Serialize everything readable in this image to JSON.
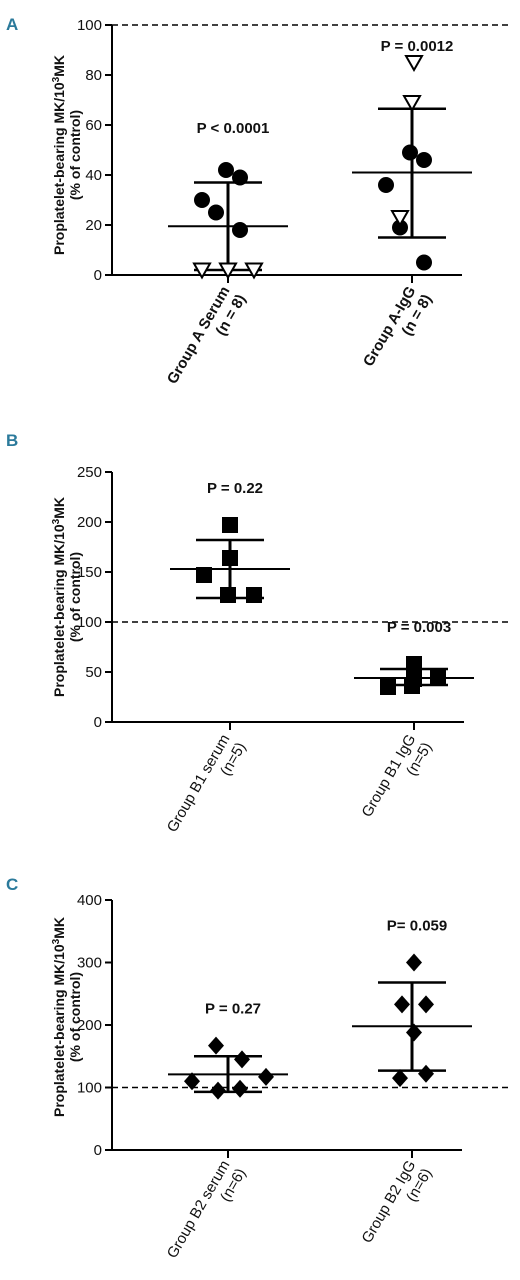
{
  "chart_data": [
    {
      "panel": "A",
      "type": "scatter",
      "ylabel_main": "Proplatelet-bearing MK/10",
      "ylabel_sup": "3",
      "ylabel_tail": "MK",
      "ylabel_line2": "(% of control)",
      "ylim": [
        0,
        100
      ],
      "yticks": [
        0,
        20,
        40,
        60,
        80,
        100
      ],
      "reference_line": 100,
      "categories": [
        {
          "label": "Group A Serum",
          "n_label": "(n = 8)",
          "p_text": "P < 0.0001",
          "mean": 19.5,
          "sd_low": 2,
          "sd_high": 37,
          "circles": [
            42,
            39,
            30,
            25,
            18
          ],
          "triangles": [
            1,
            1,
            1
          ]
        },
        {
          "label": "Group A-IgG",
          "n_label": "(n = 8)",
          "p_text": "P = 0.0012",
          "mean": 41,
          "sd_low": 15,
          "sd_high": 66.5,
          "circles": [
            49,
            46,
            36,
            19,
            5
          ],
          "triangles": [
            84,
            68,
            22
          ]
        }
      ]
    },
    {
      "panel": "B",
      "type": "scatter",
      "ylabel_main": "Proplatelet-bearing MK/10",
      "ylabel_sup": "3",
      "ylabel_tail": "MK",
      "ylabel_line2": "(% of control)",
      "ylim": [
        0,
        250
      ],
      "yticks": [
        0,
        50,
        100,
        150,
        200,
        250
      ],
      "reference_line": 100,
      "categories": [
        {
          "label": "Group B1 serum",
          "n_label": "(n=5)",
          "p_text": "P = 0.22",
          "mean": 153,
          "sd_low": 124,
          "sd_high": 182,
          "squares": [
            197,
            164,
            147,
            127,
            127
          ]
        },
        {
          "label": "Group B1 IgG",
          "n_label": "(n=5)",
          "p_text": "P = 0.003",
          "mean": 44,
          "sd_low": 37,
          "sd_high": 53,
          "squares": [
            58,
            43,
            35,
            36,
            46
          ]
        }
      ]
    },
    {
      "panel": "C",
      "type": "scatter",
      "ylabel_main": "Proplatelet-bearing MK/10",
      "ylabel_sup": "3",
      "ylabel_tail": "MK",
      "ylabel_line2": "(% of control)",
      "ylim": [
        0,
        400
      ],
      "yticks": [
        0,
        100,
        200,
        300,
        400
      ],
      "reference_line": 100,
      "categories": [
        {
          "label": "Group B2 serum",
          "n_label": "(n=6)",
          "p_text": "P = 0.27",
          "mean": 121,
          "sd_low": 93,
          "sd_high": 150,
          "diamonds": [
            167,
            145,
            110,
            117,
            95,
            98
          ]
        },
        {
          "label": "Group B2 IgG",
          "n_label": "(n=6)",
          "p_text": "P= 0.059",
          "mean": 198,
          "sd_low": 127,
          "sd_high": 268,
          "diamonds": [
            300,
            233,
            233,
            188,
            115,
            122
          ]
        }
      ]
    }
  ]
}
